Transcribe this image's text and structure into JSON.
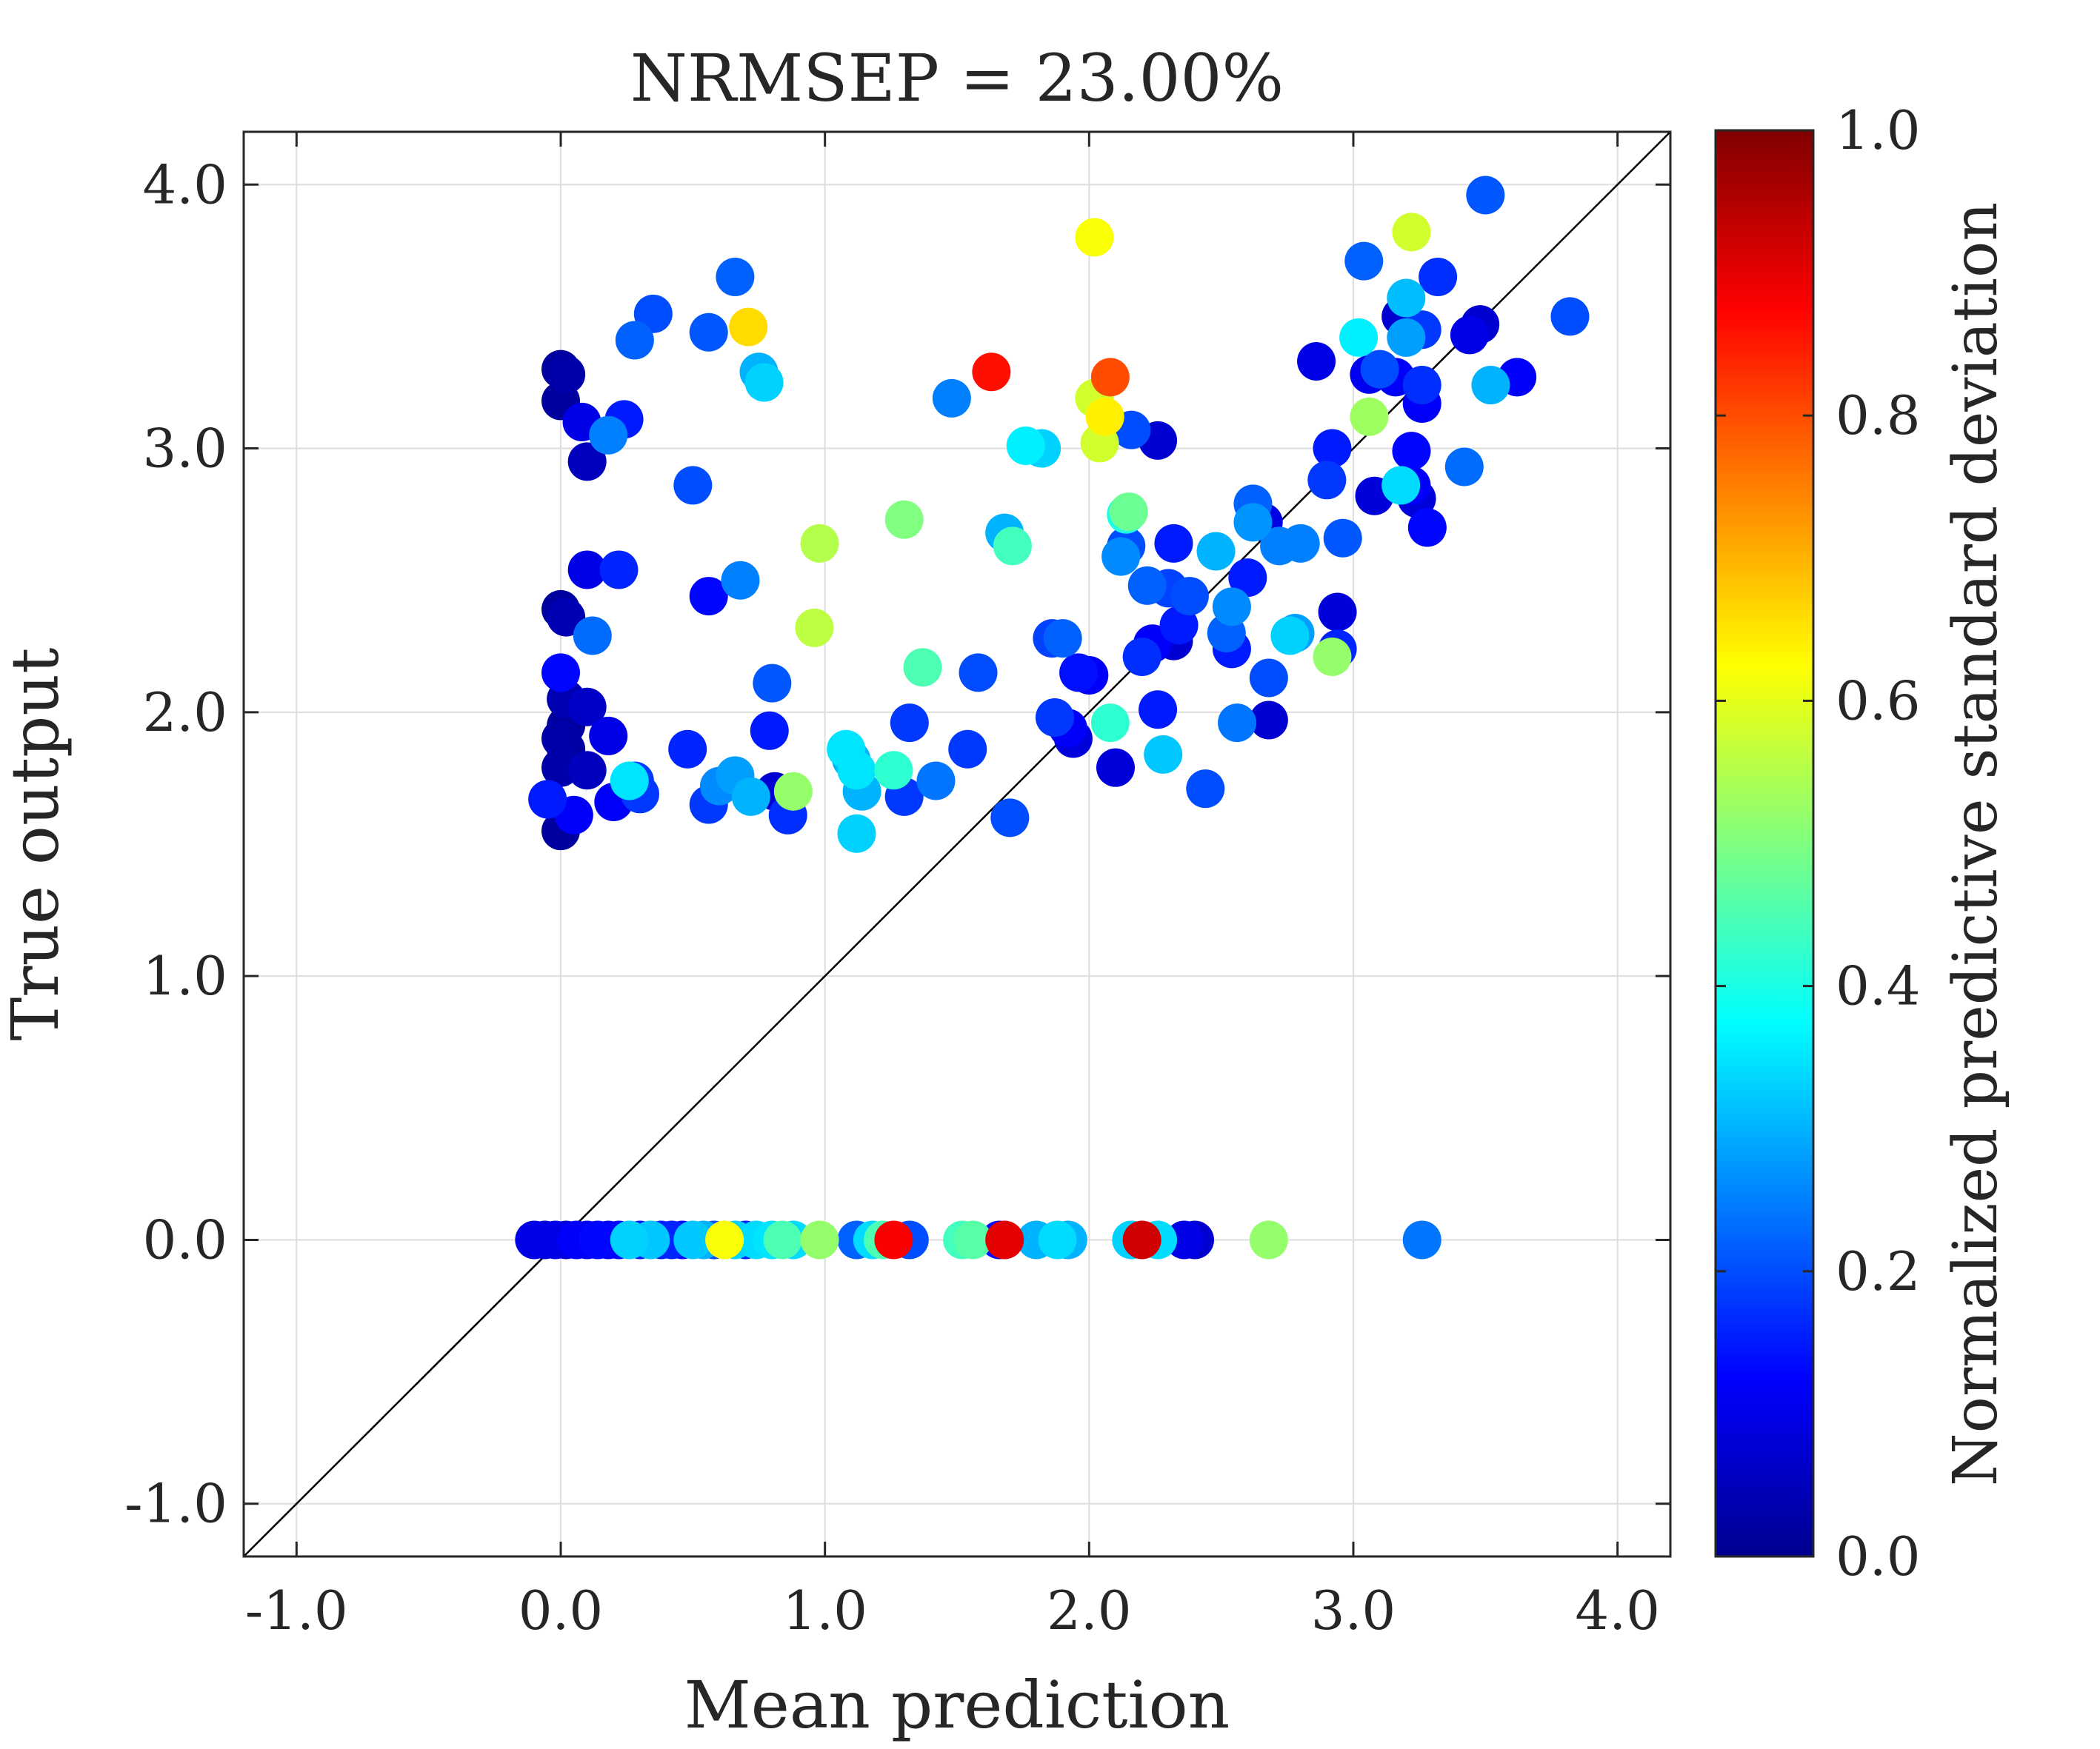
{
  "chart_data": {
    "type": "scatter",
    "title": "NRMSEP = 23.00%",
    "xlabel": "Mean prediction",
    "ylabel": "True output",
    "xlim": [
      -1.2,
      4.2
    ],
    "ylim": [
      -1.2,
      4.2
    ],
    "xticks": [
      -1.0,
      0.0,
      1.0,
      2.0,
      3.0,
      4.0
    ],
    "yticks": [
      -1.0,
      0.0,
      1.0,
      2.0,
      3.0,
      4.0
    ],
    "xtick_labels": [
      "-1.0",
      "0.0",
      "1.0",
      "2.0",
      "3.0",
      "4.0"
    ],
    "ytick_labels": [
      "-1.0",
      "0.0",
      "1.0",
      "2.0",
      "3.0",
      "4.0"
    ],
    "grid": true,
    "reference_line": "y = x",
    "colorbar": {
      "label": "Normalized predictive standard deviation",
      "colormap": "jet",
      "lim": [
        0.0,
        1.0
      ],
      "ticks": [
        0.0,
        0.2,
        0.4,
        0.6,
        0.8,
        1.0
      ],
      "tick_labels": [
        "0.0",
        "0.2",
        "0.4",
        "0.6",
        "0.8",
        "1.0"
      ]
    },
    "points": [
      [
        0.0,
        3.3,
        0.03
      ],
      [
        0.02,
        3.28,
        0.04
      ],
      [
        0.0,
        3.18,
        0.03
      ],
      [
        0.08,
        3.1,
        0.1
      ],
      [
        0.1,
        2.95,
        0.06
      ],
      [
        0.18,
        3.05,
        0.25
      ],
      [
        0.24,
        3.11,
        0.15
      ],
      [
        0.28,
        3.41,
        0.22
      ],
      [
        0.35,
        3.51,
        0.2
      ],
      [
        0.56,
        3.44,
        0.21
      ],
      [
        0.66,
        3.65,
        0.22
      ],
      [
        0.71,
        3.46,
        0.66
      ],
      [
        0.75,
        3.29,
        0.3
      ],
      [
        0.77,
        3.25,
        0.33
      ],
      [
        0.5,
        2.86,
        0.2
      ],
      [
        0.1,
        2.54,
        0.1
      ],
      [
        0.22,
        2.54,
        0.16
      ],
      [
        0.0,
        2.39,
        0.03
      ],
      [
        0.02,
        2.36,
        0.05
      ],
      [
        0.12,
        2.29,
        0.23
      ],
      [
        0.56,
        2.44,
        0.13
      ],
      [
        0.68,
        2.5,
        0.25
      ],
      [
        0.98,
        2.64,
        0.55
      ],
      [
        0.96,
        2.32,
        0.56
      ],
      [
        1.3,
        2.73,
        0.5
      ],
      [
        1.37,
        2.17,
        0.45
      ],
      [
        0.0,
        2.15,
        0.13
      ],
      [
        0.02,
        2.05,
        0.05
      ],
      [
        0.1,
        2.02,
        0.07
      ],
      [
        0.02,
        1.95,
        0.03
      ],
      [
        0.0,
        1.9,
        0.04
      ],
      [
        0.02,
        1.86,
        0.03
      ],
      [
        0.0,
        1.79,
        0.04
      ],
      [
        0.1,
        1.78,
        0.06
      ],
      [
        0.18,
        1.91,
        0.1
      ],
      [
        -0.05,
        1.67,
        0.15
      ],
      [
        0.05,
        1.61,
        0.12
      ],
      [
        0.0,
        1.55,
        0.03
      ],
      [
        0.2,
        1.66,
        0.12
      ],
      [
        0.26,
        1.74,
        0.35
      ],
      [
        0.28,
        1.74,
        0.18
      ],
      [
        0.3,
        1.69,
        0.18
      ],
      [
        0.48,
        1.86,
        0.16
      ],
      [
        0.56,
        1.65,
        0.18
      ],
      [
        0.6,
        1.72,
        0.26
      ],
      [
        0.66,
        1.76,
        0.28
      ],
      [
        0.72,
        1.68,
        0.3
      ],
      [
        0.79,
        1.93,
        0.15
      ],
      [
        0.8,
        2.11,
        0.21
      ],
      [
        0.81,
        1.7,
        0.08
      ],
      [
        0.86,
        1.61,
        0.17
      ],
      [
        0.88,
        1.7,
        0.52
      ],
      [
        1.08,
        1.86,
        0.35
      ],
      [
        1.1,
        1.82,
        0.3
      ],
      [
        1.12,
        1.78,
        0.35
      ],
      [
        1.12,
        1.54,
        0.33
      ],
      [
        1.14,
        1.7,
        0.3
      ],
      [
        1.26,
        1.78,
        0.42
      ],
      [
        1.32,
        1.96,
        0.18
      ],
      [
        1.3,
        1.68,
        0.18
      ],
      [
        1.42,
        1.74,
        0.24
      ],
      [
        1.54,
        1.86,
        0.18
      ],
      [
        1.58,
        2.15,
        0.2
      ],
      [
        1.48,
        3.19,
        0.25
      ],
      [
        1.63,
        3.29,
        0.86
      ],
      [
        1.68,
        2.68,
        0.3
      ],
      [
        1.71,
        2.63,
        0.44
      ],
      [
        1.76,
        3.01,
        0.36
      ],
      [
        1.82,
        3.0,
        0.33
      ],
      [
        1.7,
        1.6,
        0.2
      ],
      [
        1.86,
        2.28,
        0.19
      ],
      [
        1.9,
        2.28,
        0.22
      ],
      [
        1.87,
        1.98,
        0.18
      ],
      [
        1.92,
        1.94,
        0.12
      ],
      [
        1.94,
        1.9,
        0.09
      ],
      [
        1.96,
        2.15,
        0.14
      ],
      [
        2.0,
        2.14,
        0.12
      ],
      [
        2.02,
        3.8,
        0.62
      ],
      [
        2.02,
        3.19,
        0.58
      ],
      [
        2.04,
        3.02,
        0.58
      ],
      [
        2.06,
        3.12,
        0.64
      ],
      [
        2.08,
        3.27,
        0.8
      ],
      [
        2.08,
        1.96,
        0.42
      ],
      [
        2.1,
        1.79,
        0.09
      ],
      [
        2.12,
        2.59,
        0.26
      ],
      [
        2.14,
        2.63,
        0.2
      ],
      [
        2.14,
        2.75,
        0.4
      ],
      [
        2.15,
        2.76,
        0.48
      ],
      [
        2.16,
        3.07,
        0.2
      ],
      [
        2.2,
        2.21,
        0.17
      ],
      [
        2.22,
        2.48,
        0.22
      ],
      [
        2.24,
        2.26,
        0.12
      ],
      [
        2.26,
        2.01,
        0.15
      ],
      [
        2.26,
        3.03,
        0.08
      ],
      [
        2.28,
        1.84,
        0.32
      ],
      [
        2.3,
        2.47,
        0.19
      ],
      [
        2.32,
        2.64,
        0.15
      ],
      [
        2.32,
        2.27,
        0.08
      ],
      [
        2.34,
        2.33,
        0.15
      ],
      [
        2.38,
        2.44,
        0.2
      ],
      [
        2.44,
        1.71,
        0.2
      ],
      [
        2.48,
        2.61,
        0.3
      ],
      [
        2.52,
        2.3,
        0.22
      ],
      [
        2.54,
        2.24,
        0.15
      ],
      [
        2.54,
        2.4,
        0.26
      ],
      [
        2.56,
        1.96,
        0.24
      ],
      [
        2.6,
        2.51,
        0.15
      ],
      [
        2.62,
        2.72,
        0.27
      ],
      [
        2.62,
        2.79,
        0.22
      ],
      [
        2.66,
        2.72,
        0.1
      ],
      [
        2.68,
        2.13,
        0.2
      ],
      [
        2.68,
        1.97,
        0.08
      ],
      [
        2.72,
        2.63,
        0.25
      ],
      [
        2.76,
        2.29,
        0.33
      ],
      [
        2.78,
        2.3,
        0.28
      ],
      [
        2.8,
        2.64,
        0.25
      ],
      [
        2.86,
        3.33,
        0.1
      ],
      [
        2.9,
        2.88,
        0.18
      ],
      [
        2.92,
        3.0,
        0.15
      ],
      [
        2.92,
        2.21,
        0.52
      ],
      [
        2.94,
        2.38,
        0.09
      ],
      [
        2.94,
        2.24,
        0.16
      ],
      [
        2.96,
        2.66,
        0.21
      ],
      [
        3.04,
        3.71,
        0.22
      ],
      [
        3.06,
        3.28,
        0.11
      ],
      [
        3.06,
        3.12,
        0.53
      ],
      [
        3.08,
        2.82,
        0.09
      ],
      [
        3.1,
        3.3,
        0.2
      ],
      [
        3.16,
        3.27,
        0.12
      ],
      [
        3.18,
        3.5,
        0.08
      ],
      [
        3.2,
        3.57,
        0.31
      ],
      [
        3.2,
        3.42,
        0.28
      ],
      [
        3.22,
        3.82,
        0.58
      ],
      [
        3.22,
        2.99,
        0.13
      ],
      [
        3.22,
        2.86,
        0.12
      ],
      [
        3.24,
        2.81,
        0.09
      ],
      [
        3.26,
        3.45,
        0.18
      ],
      [
        3.26,
        3.17,
        0.12
      ],
      [
        3.26,
        3.24,
        0.17
      ],
      [
        3.28,
        2.7,
        0.13
      ],
      [
        3.32,
        3.65,
        0.17
      ],
      [
        3.42,
        2.93,
        0.23
      ],
      [
        3.44,
        3.43,
        0.1
      ],
      [
        3.48,
        3.47,
        0.08
      ],
      [
        3.5,
        3.96,
        0.21
      ],
      [
        3.52,
        3.24,
        0.3
      ],
      [
        3.62,
        3.27,
        0.12
      ],
      [
        3.82,
        3.5,
        0.2
      ],
      [
        3.02,
        3.42,
        0.36
      ],
      [
        3.18,
        2.86,
        0.34
      ],
      [
        -0.1,
        0.0,
        0.1
      ],
      [
        -0.06,
        0.0,
        0.08
      ],
      [
        -0.02,
        0.0,
        0.1
      ],
      [
        0.02,
        0.0,
        0.08
      ],
      [
        0.06,
        0.0,
        0.12
      ],
      [
        0.1,
        0.0,
        0.1
      ],
      [
        0.14,
        0.0,
        0.13
      ],
      [
        0.18,
        0.0,
        0.11
      ],
      [
        0.22,
        0.0,
        0.13
      ],
      [
        0.26,
        0.0,
        0.33
      ],
      [
        0.3,
        0.0,
        0.15
      ],
      [
        0.34,
        0.0,
        0.32
      ],
      [
        0.38,
        0.0,
        0.15
      ],
      [
        0.42,
        0.0,
        0.16
      ],
      [
        0.46,
        0.0,
        0.13
      ],
      [
        0.5,
        0.0,
        0.32
      ],
      [
        0.54,
        0.0,
        0.3
      ],
      [
        0.58,
        0.0,
        0.2
      ],
      [
        0.62,
        0.0,
        0.62
      ],
      [
        0.66,
        0.0,
        0.33
      ],
      [
        0.7,
        0.0,
        0.16
      ],
      [
        0.74,
        0.0,
        0.34
      ],
      [
        0.8,
        0.0,
        0.35
      ],
      [
        0.84,
        0.0,
        0.45
      ],
      [
        0.88,
        0.0,
        0.34
      ],
      [
        0.98,
        0.0,
        0.52
      ],
      [
        1.12,
        0.0,
        0.22
      ],
      [
        1.18,
        0.0,
        0.34
      ],
      [
        1.22,
        0.0,
        0.45
      ],
      [
        1.26,
        0.0,
        0.88
      ],
      [
        1.32,
        0.0,
        0.2
      ],
      [
        1.52,
        0.0,
        0.44
      ],
      [
        1.56,
        0.0,
        0.46
      ],
      [
        1.66,
        0.0,
        0.14
      ],
      [
        1.68,
        0.0,
        0.9
      ],
      [
        1.8,
        0.0,
        0.3
      ],
      [
        1.88,
        0.0,
        0.34
      ],
      [
        1.92,
        0.0,
        0.3
      ],
      [
        2.16,
        0.0,
        0.33
      ],
      [
        2.2,
        0.0,
        0.92
      ],
      [
        2.26,
        0.0,
        0.34
      ],
      [
        2.36,
        0.0,
        0.1
      ],
      [
        2.4,
        0.0,
        0.08
      ],
      [
        2.68,
        0.0,
        0.52
      ],
      [
        3.26,
        0.0,
        0.24
      ]
    ]
  }
}
